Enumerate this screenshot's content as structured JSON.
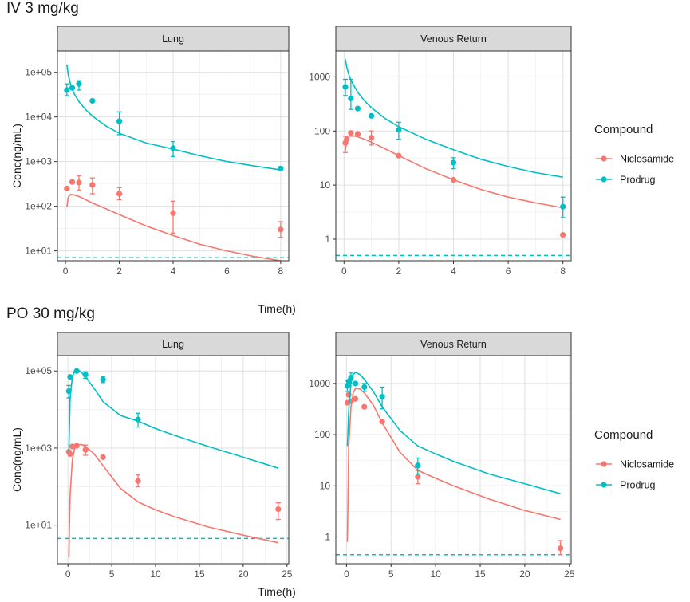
{
  "figure": {
    "sections": [
      {
        "title": "IV 3 mg/kg"
      },
      {
        "title": "PO 30 mg/kg"
      }
    ],
    "legend": {
      "title": "Compound",
      "entries": [
        {
          "label": "Niclosamide",
          "color": "#F8766D"
        },
        {
          "label": "Prodrug",
          "color": "#00BFC4"
        }
      ]
    }
  },
  "chart_data": [
    {
      "type": "line",
      "section": "IV 3 mg/kg",
      "panel": "Lung",
      "xlabel": "Time(h)",
      "ylabel": "Conc(ng/mL)",
      "xlim": [
        -0.3,
        8.3
      ],
      "ylim": [
        6,
        300000
      ],
      "yscale": "log",
      "x_ticks": [
        0,
        2,
        4,
        6,
        8
      ],
      "x_tick_labels": [
        "0",
        "2",
        "4",
        "6",
        "8"
      ],
      "y_ticks": [
        10,
        100,
        1000,
        10000,
        100000
      ],
      "y_tick_labels": [
        "1e+01",
        "1e+02",
        "1e+03",
        "1e+04",
        "1e+05"
      ],
      "lloq": 7,
      "series": [
        {
          "name": "Niclosamide",
          "color": "#F8766D",
          "curve": {
            "x": [
              0.05,
              0.1,
              0.2,
              0.3,
              0.5,
              0.75,
              1,
              1.5,
              2,
              3,
              4,
              5,
              6,
              7,
              8
            ],
            "y": [
              95,
              160,
              185,
              180,
              165,
              140,
              118,
              88,
              65,
              36,
              22,
              14,
              10,
              7.5,
              6
            ]
          },
          "points": [
            {
              "x": 0.05,
              "y": 250
            },
            {
              "x": 0.25,
              "y": 350
            },
            {
              "x": 0.5,
              "y": 340,
              "lo": 230,
              "hi": 480
            },
            {
              "x": 1,
              "y": 300,
              "lo": 190,
              "hi": 430
            },
            {
              "x": 2,
              "y": 190,
              "lo": 140,
              "hi": 260
            },
            {
              "x": 4,
              "y": 70,
              "lo": 25,
              "hi": 130
            },
            {
              "x": 8,
              "y": 30,
              "lo": 20,
              "hi": 45
            }
          ]
        },
        {
          "name": "Prodrug",
          "color": "#00BFC4",
          "curve": {
            "x": [
              0.05,
              0.1,
              0.2,
              0.3,
              0.5,
              0.75,
              1,
              1.5,
              2,
              3,
              4,
              5,
              6,
              7,
              8
            ],
            "y": [
              150000,
              90000,
              50000,
              35000,
              22000,
              14500,
              10500,
              6300,
              4300,
              2600,
              1900,
              1350,
              1000,
              800,
              650
            ]
          },
          "points": [
            {
              "x": 0.05,
              "y": 40000,
              "lo": 30000,
              "hi": 55000
            },
            {
              "x": 0.25,
              "y": 45000
            },
            {
              "x": 0.5,
              "y": 55000,
              "lo": 40000,
              "hi": 65000
            },
            {
              "x": 1,
              "y": 23000
            },
            {
              "x": 2,
              "y": 8000,
              "lo": 4000,
              "hi": 13000
            },
            {
              "x": 4,
              "y": 2000,
              "lo": 1300,
              "hi": 2800
            },
            {
              "x": 8,
              "y": 700
            }
          ]
        }
      ]
    },
    {
      "type": "line",
      "section": "IV 3 mg/kg",
      "panel": "Venous Return",
      "xlabel": "Time(h)",
      "ylabel": "",
      "xlim": [
        -0.3,
        8.3
      ],
      "ylim": [
        0.4,
        3000
      ],
      "yscale": "log",
      "x_ticks": [
        0,
        2,
        4,
        6,
        8
      ],
      "x_tick_labels": [
        "0",
        "2",
        "4",
        "6",
        "8"
      ],
      "y_ticks": [
        1,
        10,
        100,
        1000
      ],
      "y_tick_labels": [
        "1",
        "10",
        "100",
        "1000"
      ],
      "lloq": 0.5,
      "series": [
        {
          "name": "Niclosamide",
          "color": "#F8766D",
          "curve": {
            "x": [
              0.05,
              0.1,
              0.2,
              0.3,
              0.5,
              0.75,
              1,
              1.5,
              2,
              3,
              4,
              5,
              6,
              7,
              8
            ],
            "y": [
              45,
              65,
              80,
              82,
              78,
              70,
              62,
              47,
              35,
              20,
              12.5,
              8.3,
              6,
              4.7,
              3.8
            ]
          },
          "points": [
            {
              "x": 0.05,
              "y": 60,
              "lo": 40,
              "hi": 80
            },
            {
              "x": 0.1,
              "y": 70
            },
            {
              "x": 0.25,
              "y": 92,
              "lo": 80,
              "hi": 100
            },
            {
              "x": 0.5,
              "y": 88
            },
            {
              "x": 1,
              "y": 75,
              "lo": 55,
              "hi": 100
            },
            {
              "x": 2,
              "y": 35
            },
            {
              "x": 4,
              "y": 12.5
            },
            {
              "x": 8,
              "y": 1.2
            }
          ]
        },
        {
          "name": "Prodrug",
          "color": "#00BFC4",
          "curve": {
            "x": [
              0.05,
              0.1,
              0.2,
              0.3,
              0.5,
              0.75,
              1,
              1.5,
              2,
              3,
              4,
              5,
              6,
              7,
              8
            ],
            "y": [
              2100,
              1500,
              1000,
              780,
              520,
              360,
              270,
              170,
              120,
              70,
              45,
              30,
              22,
              17,
              14
            ]
          },
          "points": [
            {
              "x": 0.05,
              "y": 650,
              "lo": 450,
              "hi": 900
            },
            {
              "x": 0.25,
              "y": 400,
              "lo": 250,
              "hi": 900
            },
            {
              "x": 0.5,
              "y": 260
            },
            {
              "x": 1,
              "y": 190
            },
            {
              "x": 2,
              "y": 105,
              "lo": 70,
              "hi": 145
            },
            {
              "x": 4,
              "y": 26,
              "lo": 20,
              "hi": 32
            },
            {
              "x": 8,
              "y": 4,
              "lo": 2.5,
              "hi": 6
            }
          ]
        }
      ]
    },
    {
      "type": "line",
      "section": "PO 30 mg/kg",
      "panel": "Lung",
      "xlabel": "Time(h)",
      "ylabel": "Conc(ng/mL)",
      "xlim": [
        -1.2,
        25.2
      ],
      "ylim": [
        1,
        250000
      ],
      "yscale": "log",
      "x_ticks": [
        0,
        5,
        10,
        15,
        20,
        25
      ],
      "x_tick_labels": [
        "0",
        "5",
        "10",
        "15",
        "20",
        "25"
      ],
      "y_ticks": [
        10,
        1000,
        100000
      ],
      "y_tick_labels": [
        "1e+01",
        "1e+03",
        "1e+05"
      ],
      "lloq": 4.5,
      "series": [
        {
          "name": "Niclosamide",
          "color": "#F8766D",
          "curve": {
            "x": [
              0.1,
              0.25,
              0.5,
              0.75,
              1,
              1.5,
              2,
              3,
              4,
              6,
              8,
              10,
              12,
              16,
              20,
              24
            ],
            "y": [
              1.5,
              60,
              500,
              950,
              1200,
              1250,
              1100,
              700,
              350,
              90,
              40,
              25,
              17,
              9,
              5.5,
              3.5
            ]
          },
          "points": [
            {
              "x": 0.1,
              "y": 800
            },
            {
              "x": 0.25,
              "y": 700
            },
            {
              "x": 0.5,
              "y": 1100
            },
            {
              "x": 1,
              "y": 1150
            },
            {
              "x": 2,
              "y": 900,
              "lo": 650,
              "hi": 1200
            },
            {
              "x": 4,
              "y": 580
            },
            {
              "x": 8,
              "y": 140,
              "lo": 100,
              "hi": 200
            },
            {
              "x": 24,
              "y": 26,
              "lo": 14,
              "hi": 38
            }
          ]
        },
        {
          "name": "Prodrug",
          "color": "#00BFC4",
          "curve": {
            "x": [
              0.1,
              0.25,
              0.5,
              0.75,
              1,
              1.5,
              2,
              3,
              4,
              6,
              8,
              10,
              12,
              16,
              20,
              24
            ],
            "y": [
              800,
              20000,
              70000,
              100000,
              110000,
              95000,
              70000,
              35000,
              16000,
              7000,
              5000,
              3200,
              2200,
              1100,
              580,
              300
            ]
          },
          "points": [
            {
              "x": 0.1,
              "y": 30000,
              "lo": 20000,
              "hi": 42000
            },
            {
              "x": 0.25,
              "y": 70000
            },
            {
              "x": 1,
              "y": 100000
            },
            {
              "x": 2,
              "y": 80000,
              "lo": 65000,
              "hi": 95000
            },
            {
              "x": 4,
              "y": 60000,
              "lo": 50000,
              "hi": 72000
            },
            {
              "x": 8,
              "y": 5500,
              "lo": 3500,
              "hi": 8000
            }
          ]
        }
      ]
    },
    {
      "type": "line",
      "section": "PO 30 mg/kg",
      "panel": "Venous Return",
      "xlabel": "Time(h)",
      "ylabel": "",
      "xlim": [
        -1.2,
        25.2
      ],
      "ylim": [
        0.3,
        3500
      ],
      "yscale": "log",
      "x_ticks": [
        0,
        5,
        10,
        15,
        20,
        25
      ],
      "x_tick_labels": [
        "0",
        "5",
        "10",
        "15",
        "20",
        "25"
      ],
      "y_ticks": [
        1,
        10,
        100,
        1000
      ],
      "y_tick_labels": [
        "1",
        "10",
        "100",
        "1000"
      ],
      "lloq": 0.45,
      "series": [
        {
          "name": "Niclosamide",
          "color": "#F8766D",
          "curve": {
            "x": [
              0.1,
              0.25,
              0.5,
              0.75,
              1,
              1.5,
              2,
              3,
              4,
              6,
              8,
              10,
              12,
              16,
              20,
              24
            ],
            "y": [
              0.8,
              60,
              350,
              650,
              800,
              780,
              650,
              380,
              170,
              45,
              20,
              14,
              10,
              5.5,
              3.3,
              2.2
            ]
          },
          "points": [
            {
              "x": 0.1,
              "y": 420
            },
            {
              "x": 0.25,
              "y": 600
            },
            {
              "x": 0.5,
              "y": 450
            },
            {
              "x": 1,
              "y": 500
            },
            {
              "x": 2,
              "y": 350
            },
            {
              "x": 4,
              "y": 180
            },
            {
              "x": 8,
              "y": 15,
              "lo": 11,
              "hi": 20
            },
            {
              "x": 24,
              "y": 0.6,
              "lo": 0.45,
              "hi": 0.85
            }
          ]
        },
        {
          "name": "Prodrug",
          "color": "#00BFC4",
          "curve": {
            "x": [
              0.1,
              0.25,
              0.5,
              0.75,
              1,
              1.5,
              2,
              3,
              4,
              6,
              8,
              10,
              12,
              16,
              20,
              24
            ],
            "y": [
              60,
              300,
              1000,
              1500,
              1650,
              1500,
              1200,
              700,
              350,
              120,
              60,
              42,
              30,
              17,
              11,
              7
            ]
          },
          "points": [
            {
              "x": 0.1,
              "y": 900,
              "lo": 700,
              "hi": 1150
            },
            {
              "x": 0.25,
              "y": 1100
            },
            {
              "x": 0.5,
              "y": 1300,
              "lo": 1000,
              "hi": 1600
            },
            {
              "x": 1,
              "y": 1000
            },
            {
              "x": 2,
              "y": 850,
              "lo": 700,
              "hi": 1000
            },
            {
              "x": 4,
              "y": 550,
              "lo": 320,
              "hi": 850
            },
            {
              "x": 8,
              "y": 25,
              "lo": 17,
              "hi": 35
            }
          ]
        }
      ]
    }
  ]
}
